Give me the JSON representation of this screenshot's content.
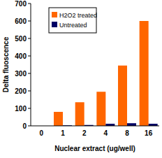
{
  "chart_data": {
    "type": "bar",
    "x_label": "Nuclear extract (ug/well)",
    "y_label": "Delta fluoscence",
    "categories": [
      "0",
      "1",
      "2",
      "4",
      "8",
      "16"
    ],
    "series": [
      {
        "name": "H2O2 treated",
        "color": "#ff6600",
        "values": [
          0,
          80,
          135,
          195,
          345,
          600
        ]
      },
      {
        "name": "Untreated",
        "color": "#000066",
        "values": [
          0,
          3,
          5,
          12,
          15,
          12
        ]
      }
    ],
    "ylim": [
      0,
      700
    ],
    "yticks": [
      0,
      100,
      200,
      300,
      400,
      500,
      600,
      700
    ],
    "grid": false,
    "legend": "upper left"
  }
}
